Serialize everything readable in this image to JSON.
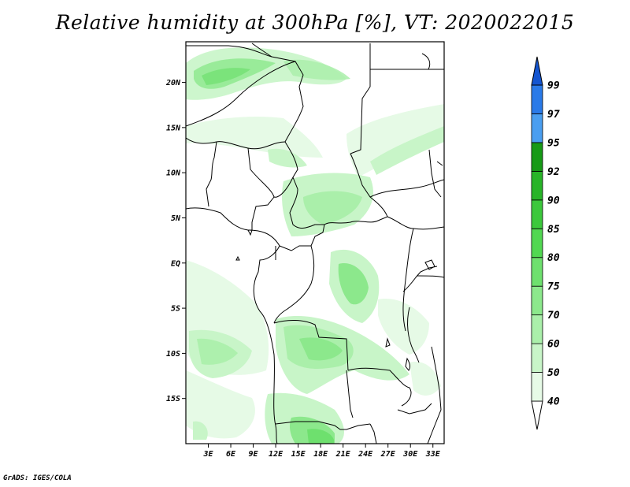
{
  "title": "Relative humidity at 300hPa [%], VT: 2020022015",
  "credit": "GrADS: IGES/COLA",
  "map": {
    "lat_ticks": [
      "20N",
      "15N",
      "10N",
      "5N",
      "EQ",
      "5S",
      "10S",
      "15S"
    ],
    "lon_ticks": [
      "3E",
      "6E",
      "9E",
      "12E",
      "15E",
      "18E",
      "21E",
      "24E",
      "27E",
      "30E",
      "33E"
    ],
    "lon_range": [
      0,
      34.5
    ],
    "lat_range": [
      -20,
      24.5
    ]
  },
  "colorbar": {
    "labels": [
      "40",
      "50",
      "60",
      "70",
      "75",
      "80",
      "85",
      "90",
      "92",
      "95",
      "97",
      "99"
    ],
    "colors": [
      "#e6fae6",
      "#c8f5c8",
      "#aaefaa",
      "#8ce88c",
      "#6ee06e",
      "#52d852",
      "#3cc83c",
      "#28b428",
      "#179a17",
      "#4a9ef0",
      "#2a7ae8",
      "#1455d0"
    ]
  }
}
